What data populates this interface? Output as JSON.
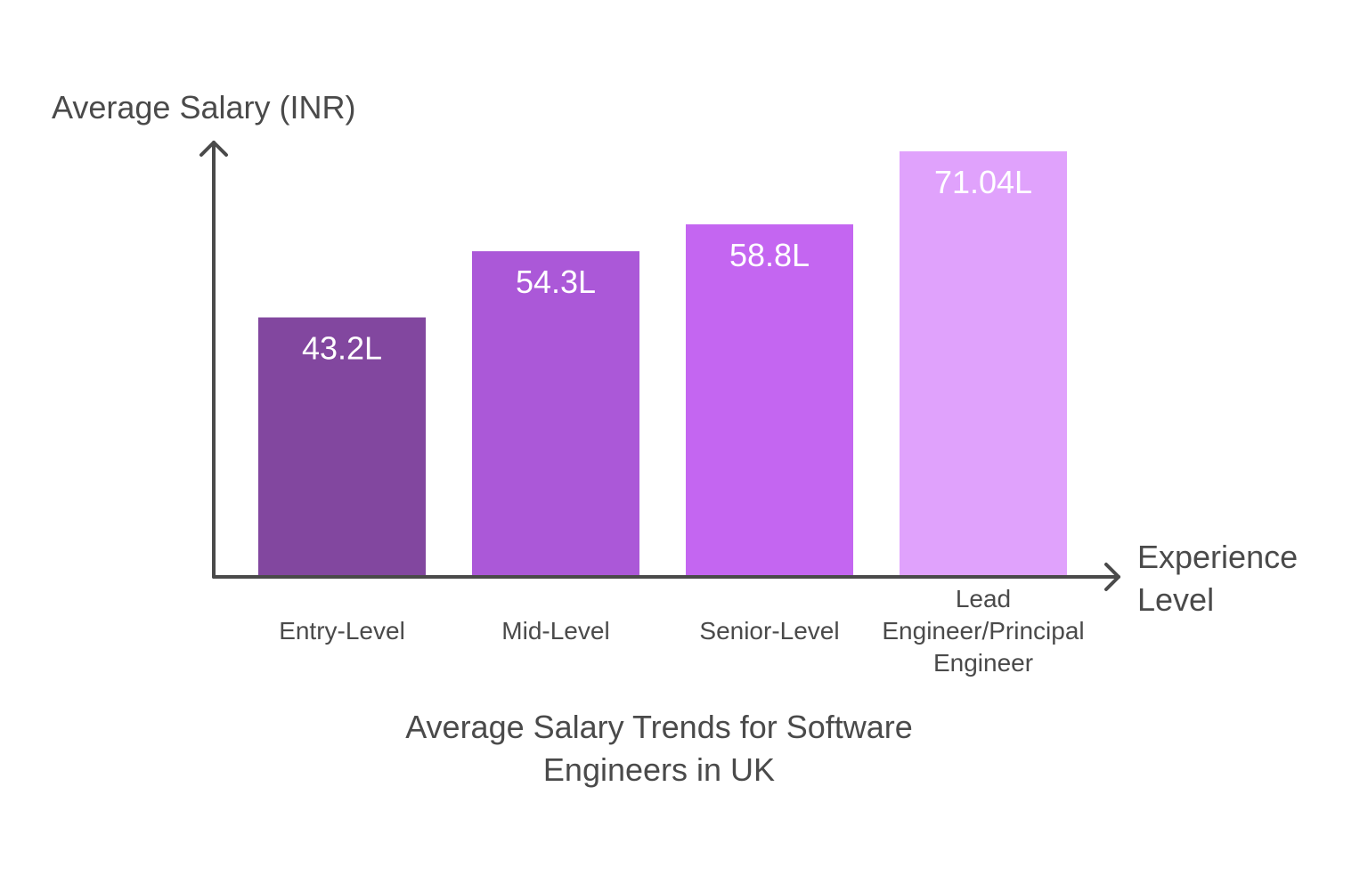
{
  "chart_data": {
    "type": "bar",
    "title": "Average Salary Trends for Software Engineers in UK",
    "xlabel": "Experience Level",
    "ylabel": "Average Salary (INR)",
    "categories": [
      "Entry-Level",
      "Mid-Level",
      "Senior-Level",
      "Lead Engineer/Principal Engineer"
    ],
    "values": [
      43.2,
      54.3,
      58.8,
      71.04
    ],
    "value_labels": [
      "43.2L",
      "54.3L",
      "58.8L",
      "71.04L"
    ],
    "colors": [
      "#82479f",
      "#ab58d8",
      "#c466f1",
      "#e0a2fc"
    ],
    "ylim": [
      0,
      80
    ],
    "grid": false,
    "legend": "none"
  }
}
